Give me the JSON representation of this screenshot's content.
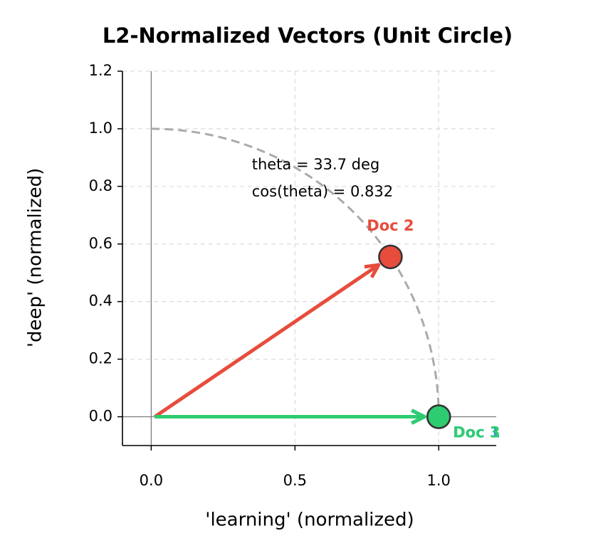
{
  "chart_data": {
    "type": "scatter",
    "title": "L2-Normalized Vectors (Unit Circle)",
    "xlabel": "'learning' (normalized)",
    "ylabel": "'deep' (normalized)",
    "xlim": [
      -0.1,
      1.2
    ],
    "ylim": [
      -0.1,
      1.2
    ],
    "xticks": [
      {
        "value": 0,
        "label": "0.0"
      },
      0.5,
      {
        "value": 1,
        "label": "1.0"
      }
    ],
    "yticks": [
      {
        "value": 0,
        "label": "0.0"
      },
      0.2,
      0.4,
      0.6,
      0.8,
      {
        "value": 1,
        "label": "1.0"
      },
      1.2
    ],
    "grid": true,
    "series": [
      {
        "name": "Doc 1",
        "color": "#3498db",
        "x": [
          1.0
        ],
        "values": [
          0.0
        ]
      },
      {
        "name": "Doc 2",
        "color": "#e74c3c",
        "x": [
          0.832
        ],
        "values": [
          0.555
        ]
      },
      {
        "name": "Doc 3",
        "color": "#2ecc71",
        "x": [
          1.0
        ],
        "values": [
          0.0
        ]
      }
    ],
    "annotations": [
      "theta = 33.7 deg",
      "cos(theta) = 0.832"
    ]
  }
}
